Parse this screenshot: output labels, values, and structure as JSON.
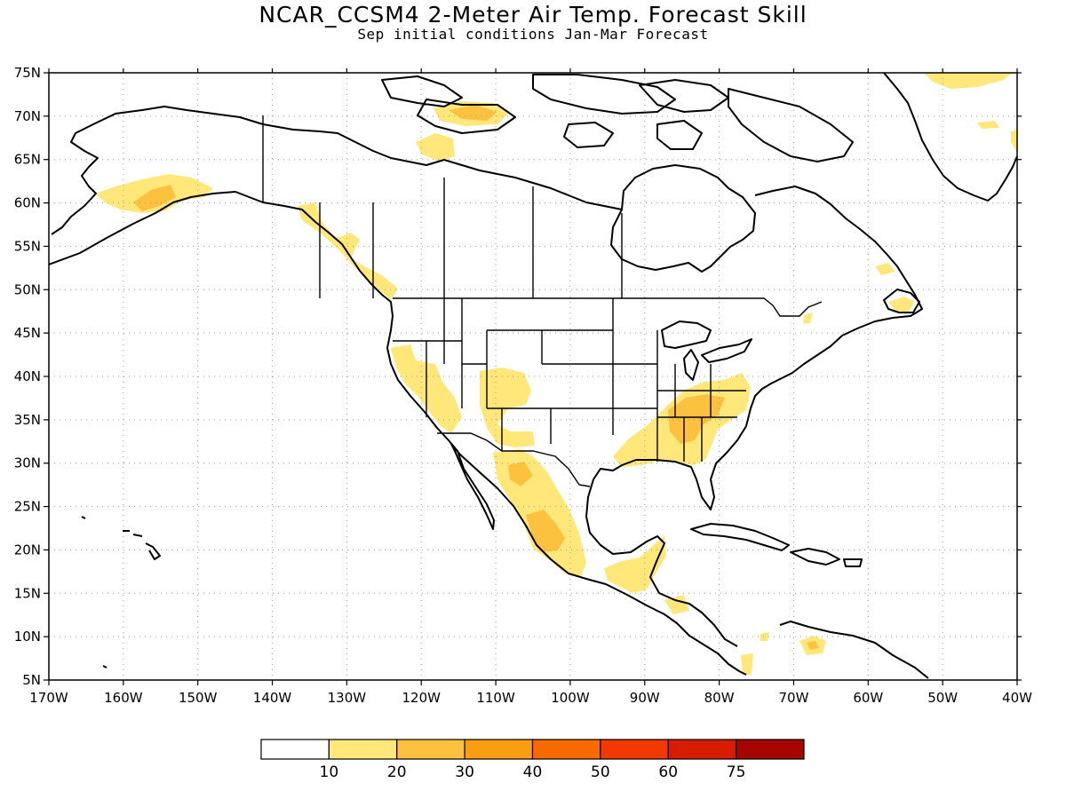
{
  "title": "NCAR_CCSM4 2-Meter Air Temp. Forecast Skill",
  "subtitle": "Sep initial conditions  Jan-Mar Forecast",
  "map": {
    "lon_range": [
      -170,
      -40
    ],
    "lat_range": [
      5,
      75
    ],
    "lat_ticks": [
      "75N",
      "70N",
      "65N",
      "60N",
      "55N",
      "50N",
      "45N",
      "40N",
      "35N",
      "30N",
      "25N",
      "20N",
      "15N",
      "10N",
      "5N"
    ],
    "lon_ticks": [
      "170W",
      "160W",
      "150W",
      "140W",
      "130W",
      "120W",
      "110W",
      "100W",
      "90W",
      "80W",
      "70W",
      "60W",
      "50W",
      "40W"
    ],
    "gridlines": true,
    "coastline_color": "#000000"
  },
  "skill_regions": [
    {
      "name": "alaska-south",
      "level": 1
    },
    {
      "name": "alaska-peak",
      "level": 2
    },
    {
      "name": "victoria-island",
      "level": 1
    },
    {
      "name": "victoria-peak",
      "level": 2
    },
    {
      "name": "banks-area",
      "level": 1
    },
    {
      "name": "bc-coast",
      "level": 1
    },
    {
      "name": "greenland-north",
      "level": 1
    },
    {
      "name": "greenland-east",
      "level": 1
    },
    {
      "name": "us-southwest",
      "level": 1
    },
    {
      "name": "four-corners",
      "level": 1
    },
    {
      "name": "mexico-west",
      "level": 1
    },
    {
      "name": "mexico-central",
      "level": 2
    },
    {
      "name": "central-america",
      "level": 1
    },
    {
      "name": "us-southeast",
      "level": 1
    },
    {
      "name": "southeast-core",
      "level": 2
    },
    {
      "name": "newfoundland",
      "level": 1
    },
    {
      "name": "venezuela",
      "level": 1
    },
    {
      "name": "venezuela-peak",
      "level": 2
    }
  ],
  "colorbar": {
    "colors": [
      "#ffffff",
      "#ffe77a",
      "#fcc13e",
      "#f99e12",
      "#f76a00",
      "#f23a00",
      "#d71d00",
      "#a50600"
    ],
    "labels": [
      "10",
      "20",
      "30",
      "40",
      "50",
      "60",
      "75"
    ]
  }
}
